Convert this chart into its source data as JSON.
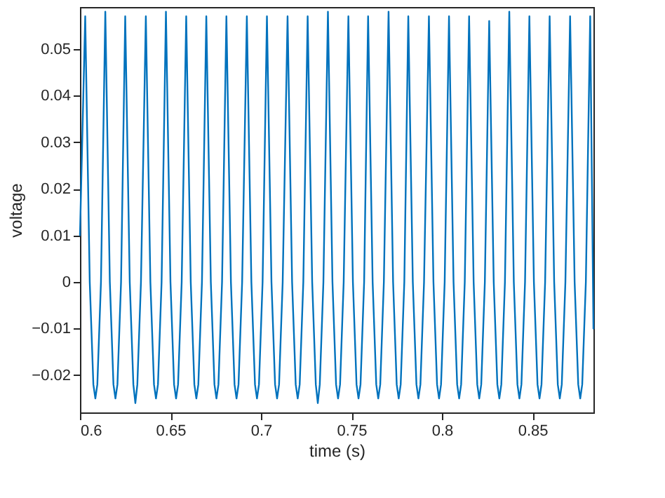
{
  "chart_data": {
    "type": "line",
    "xlabel": "time (s)",
    "ylabel": "voltage",
    "x": [
      0.6,
      0.6029,
      0.6054,
      0.6074,
      0.6085,
      0.6096,
      0.6116,
      0.614,
      0.6165,
      0.6185,
      0.6196,
      0.6207,
      0.6227,
      0.625,
      0.6275,
      0.6295,
      0.6306,
      0.6317,
      0.6337,
      0.6364,
      0.6389,
      0.6409,
      0.642,
      0.6431,
      0.6451,
      0.6475,
      0.65,
      0.652,
      0.6531,
      0.6542,
      0.6562,
      0.6587,
      0.6612,
      0.6632,
      0.6643,
      0.6654,
      0.6674,
      0.6698,
      0.6723,
      0.6743,
      0.6754,
      0.6765,
      0.6785,
      0.6809,
      0.6834,
      0.6854,
      0.6865,
      0.6876,
      0.6896,
      0.6922,
      0.6947,
      0.6967,
      0.6978,
      0.6989,
      0.7009,
      0.7033,
      0.7058,
      0.7078,
      0.7089,
      0.71,
      0.712,
      0.7147,
      0.7172,
      0.7192,
      0.7203,
      0.7214,
      0.7234,
      0.7258,
      0.7283,
      0.7303,
      0.7314,
      0.7325,
      0.7345,
      0.737,
      0.7395,
      0.7415,
      0.7426,
      0.7437,
      0.7457,
      0.7483,
      0.7508,
      0.7528,
      0.7539,
      0.755,
      0.757,
      0.7592,
      0.7617,
      0.7637,
      0.7648,
      0.7659,
      0.7679,
      0.7705,
      0.773,
      0.775,
      0.7761,
      0.7772,
      0.7792,
      0.7814,
      0.7839,
      0.7859,
      0.787,
      0.7881,
      0.7901,
      0.7928,
      0.7953,
      0.7973,
      0.7984,
      0.7995,
      0.8015,
      0.8039,
      0.8064,
      0.8084,
      0.8095,
      0.8106,
      0.8126,
      0.815,
      0.8175,
      0.8195,
      0.8206,
      0.8217,
      0.8237,
      0.8261,
      0.8286,
      0.8306,
      0.8317,
      0.8328,
      0.8348,
      0.8372,
      0.8397,
      0.8417,
      0.8428,
      0.8439,
      0.8459,
      0.8483,
      0.8508,
      0.8528,
      0.8539,
      0.855,
      0.857,
      0.8595,
      0.862,
      0.864,
      0.8651,
      0.8662,
      0.8682,
      0.8708,
      0.8733,
      0.8753,
      0.8764,
      0.8775,
      0.8795,
      0.8819,
      0.8837
    ],
    "series": [
      {
        "color": "#0072bd",
        "values": [
          0.01,
          0.057,
          0,
          -0.022,
          -0.025,
          -0.022,
          0,
          0.058,
          0,
          -0.022,
          -0.025,
          -0.022,
          0,
          0.057,
          0,
          -0.022,
          -0.026,
          -0.022,
          0,
          0.057,
          0,
          -0.022,
          -0.025,
          -0.022,
          0,
          0.058,
          0,
          -0.022,
          -0.025,
          -0.022,
          0,
          0.057,
          0,
          -0.022,
          -0.025,
          -0.022,
          0,
          0.057,
          0,
          -0.022,
          -0.025,
          -0.022,
          0,
          0.057,
          0,
          -0.022,
          -0.025,
          -0.022,
          0,
          0.057,
          0,
          -0.022,
          -0.025,
          -0.022,
          0,
          0.057,
          0,
          -0.022,
          -0.025,
          -0.022,
          0,
          0.057,
          0,
          -0.022,
          -0.025,
          -0.022,
          0,
          0.057,
          0,
          -0.022,
          -0.026,
          -0.022,
          0,
          0.058,
          0,
          -0.022,
          -0.025,
          -0.022,
          0,
          0.057,
          0,
          -0.022,
          -0.025,
          -0.022,
          0,
          0.057,
          0,
          -0.022,
          -0.025,
          -0.022,
          0,
          0.058,
          0,
          -0.022,
          -0.025,
          -0.022,
          0,
          0.057,
          0,
          -0.022,
          -0.025,
          -0.022,
          0,
          0.057,
          0,
          -0.022,
          -0.025,
          -0.022,
          0,
          0.057,
          0,
          -0.022,
          -0.025,
          -0.022,
          0,
          0.057,
          0,
          -0.022,
          -0.025,
          -0.022,
          0,
          0.056,
          0,
          -0.022,
          -0.025,
          -0.022,
          0,
          0.058,
          0,
          -0.022,
          -0.025,
          -0.022,
          0,
          0.057,
          0,
          -0.022,
          -0.025,
          -0.022,
          0,
          0.057,
          0,
          -0.022,
          -0.025,
          -0.022,
          0,
          0.057,
          0,
          -0.022,
          -0.025,
          -0.022,
          0,
          0.057,
          -0.01
        ]
      }
    ],
    "xlim": [
      0.6,
      0.8837
    ],
    "ylim": [
      -0.028,
      0.059
    ],
    "xticks": [
      0.6,
      0.65,
      0.7,
      0.75,
      0.8,
      0.85
    ],
    "yticks": [
      -0.02,
      -0.01,
      0,
      0.01,
      0.02,
      0.03,
      0.04,
      0.05
    ]
  }
}
